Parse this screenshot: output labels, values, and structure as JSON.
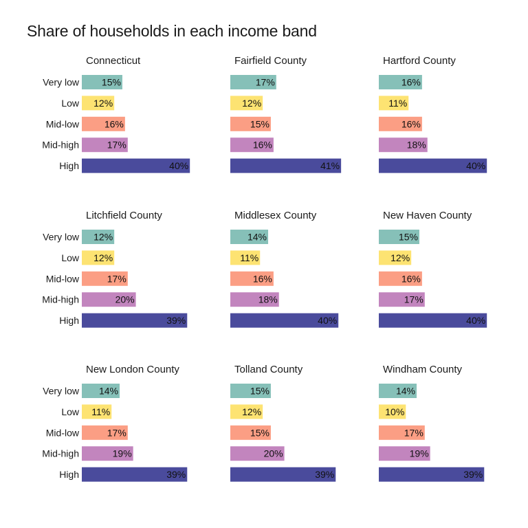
{
  "chart_data": {
    "type": "bar",
    "orientation": "horizontal",
    "title": "Share of households in each income band",
    "categories": [
      "Very low",
      "Low",
      "Mid-low",
      "Mid-high",
      "High"
    ],
    "category_colors": {
      "Very low": "#86c0b8",
      "Low": "#fde372",
      "Mid-low": "#fb9e84",
      "Mid-high": "#c285be",
      "High": "#4a4b9c"
    },
    "value_unit": "%",
    "xlim": [
      0,
      42
    ],
    "grid": false,
    "legend": "none",
    "facets": [
      {
        "title": "Connecticut",
        "values": [
          15,
          12,
          16,
          17,
          40
        ],
        "labels": [
          "15%",
          "12%",
          "16%",
          "17%",
          "40%"
        ]
      },
      {
        "title": "Fairfield County",
        "values": [
          17,
          12,
          15,
          16,
          41
        ],
        "labels": [
          "17%",
          "12%",
          "15%",
          "16%",
          "41%"
        ]
      },
      {
        "title": "Hartford County",
        "values": [
          16,
          11,
          16,
          18,
          40
        ],
        "labels": [
          "16%",
          "11%",
          "16%",
          "18%",
          "40%"
        ]
      },
      {
        "title": "Litchfield County",
        "values": [
          12,
          12,
          17,
          20,
          39
        ],
        "labels": [
          "12%",
          "12%",
          "17%",
          "20%",
          "39%"
        ]
      },
      {
        "title": "Middlesex County",
        "values": [
          14,
          11,
          16,
          18,
          40
        ],
        "labels": [
          "14%",
          "11%",
          "16%",
          "18%",
          "40%"
        ]
      },
      {
        "title": "New Haven County",
        "values": [
          15,
          12,
          16,
          17,
          40
        ],
        "labels": [
          "15%",
          "12%",
          "16%",
          "17%",
          "40%"
        ]
      },
      {
        "title": "New London County",
        "values": [
          14,
          11,
          17,
          19,
          39
        ],
        "labels": [
          "14%",
          "11%",
          "17%",
          "19%",
          "39%"
        ]
      },
      {
        "title": "Tolland County",
        "values": [
          15,
          12,
          15,
          20,
          39
        ],
        "labels": [
          "15%",
          "12%",
          "15%",
          "20%",
          "39%"
        ]
      },
      {
        "title": "Windham County",
        "values": [
          14,
          10,
          17,
          19,
          39
        ],
        "labels": [
          "14%",
          "10%",
          "17%",
          "19%",
          "39%"
        ]
      }
    ]
  }
}
